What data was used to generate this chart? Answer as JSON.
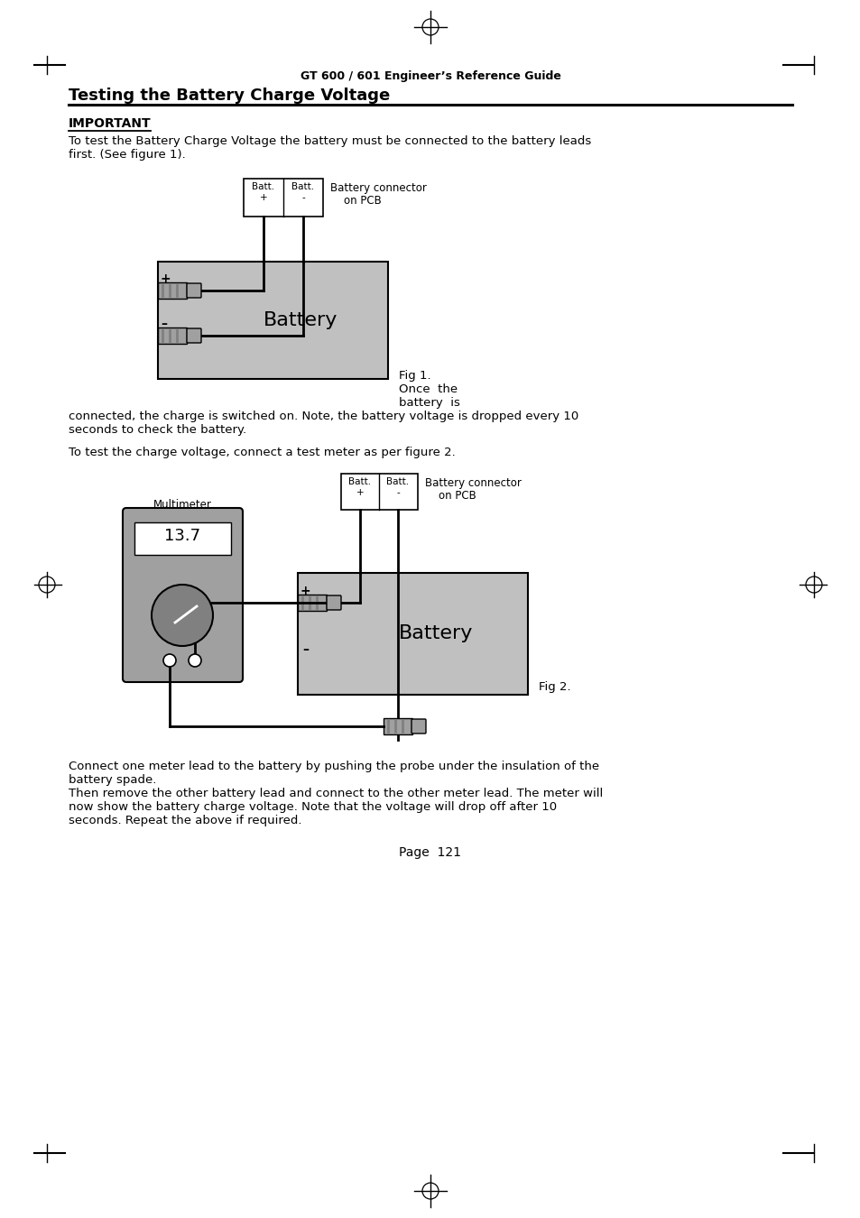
{
  "header": "GT 600 / 601 Engineer’s Reference Guide",
  "title": "Testing the Battery Charge Voltage",
  "important_label": "IMPORTANT",
  "para1_line1": "To test the Battery Charge Voltage the battery must be connected to the battery leads",
  "para1_line2": "first. (See figure 1).",
  "fig1_label": "Fig 1.",
  "once_the": "Once  the",
  "battery_is": "battery  is",
  "caption_line1": "connected, the charge is switched on. Note, the battery voltage is dropped every 10",
  "caption_line2": "seconds to check the battery.",
  "para2": "To test the charge voltage, connect a test meter as per figure 2.",
  "fig2_label": "Fig 2.",
  "battery_connector_line1": "Battery connector",
  "battery_connector_line2": "    on PCB",
  "batt_plus_top": "Batt.",
  "batt_plus_bot": "  +",
  "batt_minus_top": "Batt.",
  "batt_minus_bot": "   -",
  "battery_text": "Battery",
  "multimeter_label": "Multimeter",
  "multimeter_value": "13.7",
  "para3_line1": "Connect one meter lead to the battery by pushing the probe under the insulation of the",
  "para3_line2": "battery spade.",
  "para3_line3": "Then remove the other battery lead and connect to the other meter lead. The meter will",
  "para3_line4": "now show the battery charge voltage. Note that the voltage will drop off after 10",
  "para3_line5": "seconds. Repeat the above if required.",
  "page_label": "Page  121",
  "bg_color": "#ffffff",
  "gray_light": "#c0c0c0",
  "gray_mid": "#a0a0a0",
  "gray_dark": "#808080",
  "black": "#000000",
  "white": "#ffffff"
}
